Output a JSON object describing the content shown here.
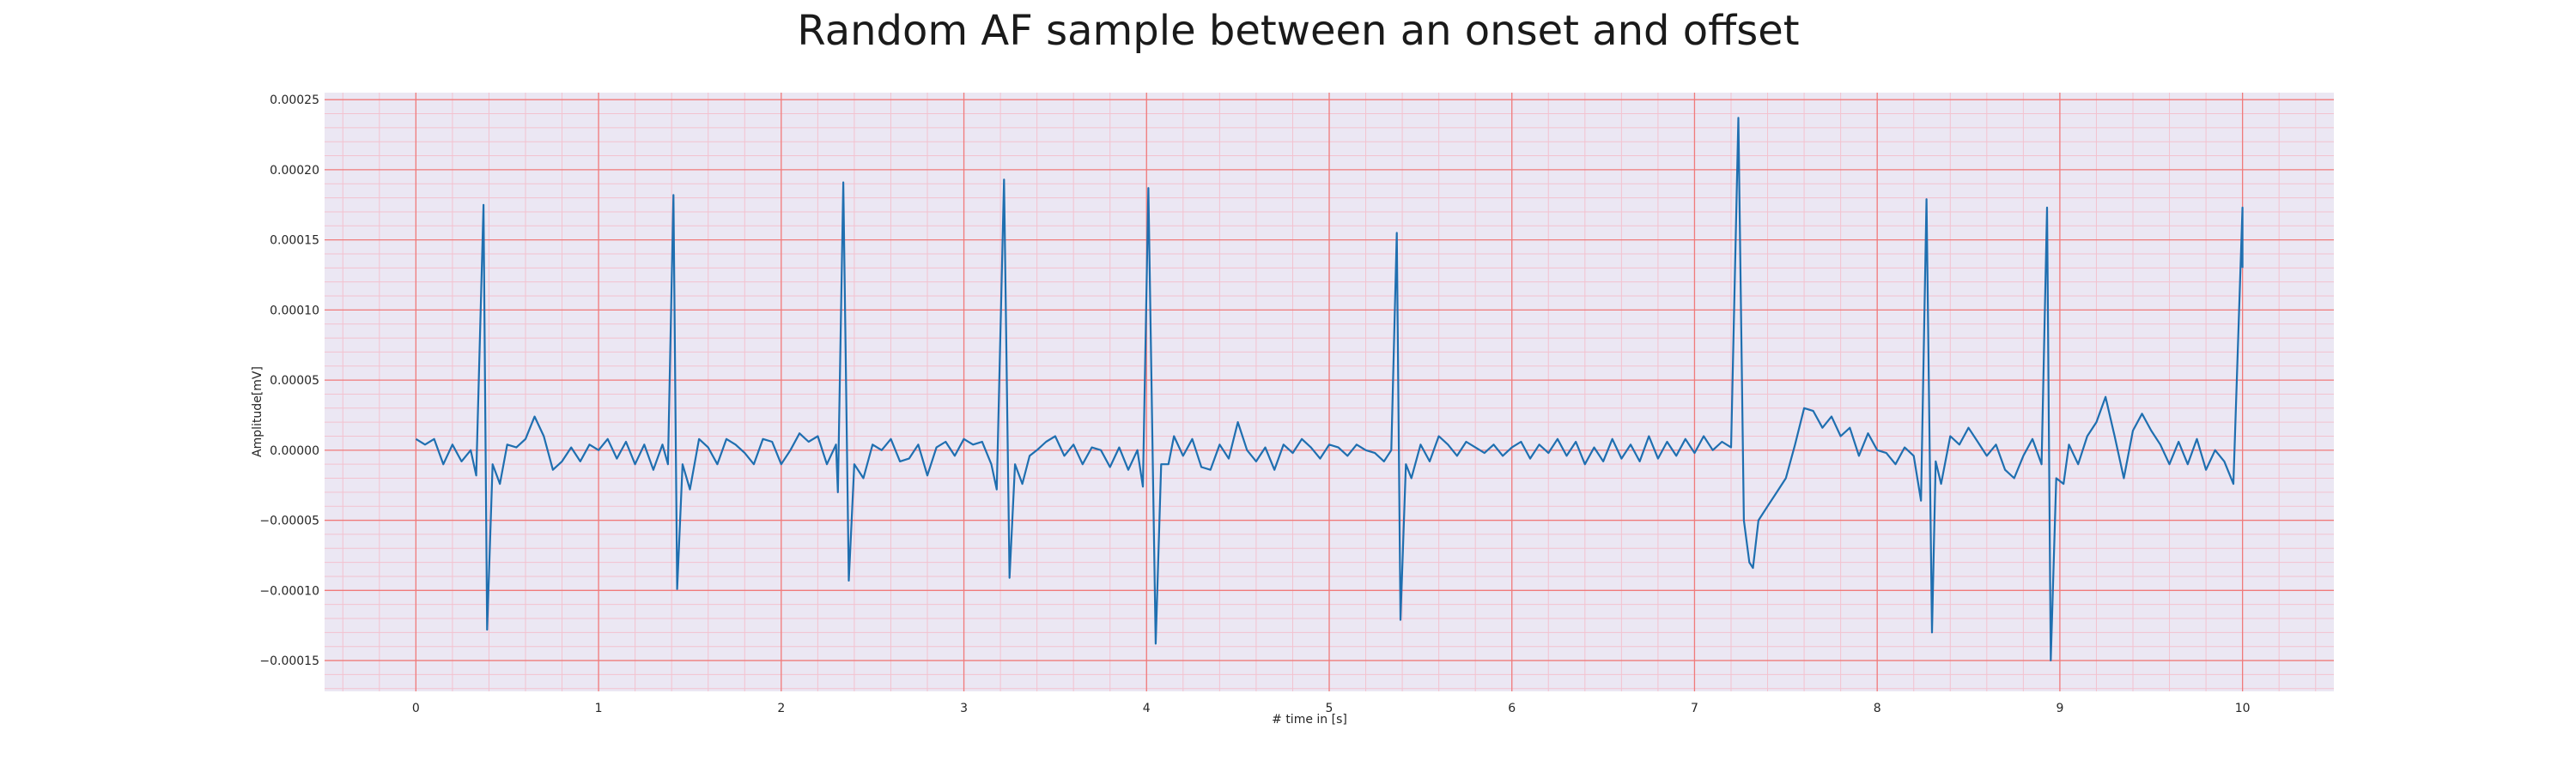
{
  "chart_data": {
    "type": "line",
    "title": "Random AF sample between an onset and offset",
    "xlabel": "# time in [s]",
    "ylabel": "Amplitude[mV]",
    "xlim": [
      -0.5,
      10.5
    ],
    "ylim": [
      -0.000172,
      0.000255
    ],
    "xticks": [
      0,
      1,
      2,
      3,
      4,
      5,
      6,
      7,
      8,
      9,
      10
    ],
    "xtick_labels": [
      "0",
      "1",
      "2",
      "3",
      "4",
      "5",
      "6",
      "7",
      "8",
      "9",
      "10"
    ],
    "yticks": [
      -0.00015,
      -0.0001,
      -5e-05,
      0,
      5e-05,
      0.0001,
      0.00015,
      0.0002,
      0.00025
    ],
    "ytick_labels": [
      "−0.00015",
      "−0.00010",
      "−0.00005",
      "0.00000",
      "0.00005",
      "0.00010",
      "0.00015",
      "0.00020",
      "0.00025"
    ],
    "grid": true,
    "minor_grid": true,
    "colors": {
      "background": "#ebe7f3",
      "major_grid": "#f07b7b",
      "minor_grid": "#f3c2cf",
      "line": "#1f6fb0"
    },
    "series": [
      {
        "points": [
          [
            0,
            8e-06
          ],
          [
            0.05,
            4e-06
          ],
          [
            0.1,
            8e-06
          ],
          [
            0.15,
            -1e-05
          ],
          [
            0.2,
            4e-06
          ],
          [
            0.25,
            -8e-06
          ],
          [
            0.3,
            0.0
          ],
          [
            0.33,
            -1.8e-05
          ],
          [
            0.37,
            0.000175
          ],
          [
            0.39,
            -0.000128
          ],
          [
            0.42,
            -1e-05
          ],
          [
            0.46,
            -2.4e-05
          ],
          [
            0.5,
            4e-06
          ],
          [
            0.55,
            2e-06
          ],
          [
            0.6,
            8e-06
          ],
          [
            0.65,
            2.4e-05
          ],
          [
            0.7,
            1e-05
          ],
          [
            0.75,
            -1.4e-05
          ],
          [
            0.8,
            -8e-06
          ],
          [
            0.85,
            2e-06
          ],
          [
            0.9,
            -8e-06
          ],
          [
            0.95,
            4e-06
          ],
          [
            1.0,
            0.0
          ],
          [
            1.05,
            8e-06
          ],
          [
            1.1,
            -6e-06
          ],
          [
            1.15,
            6e-06
          ],
          [
            1.2,
            -1e-05
          ],
          [
            1.25,
            4e-06
          ],
          [
            1.3,
            -1.4e-05
          ],
          [
            1.35,
            4e-06
          ],
          [
            1.38,
            -1e-05
          ],
          [
            1.41,
            0.000182
          ],
          [
            1.43,
            -9.9e-05
          ],
          [
            1.46,
            -1e-05
          ],
          [
            1.5,
            -2.8e-05
          ],
          [
            1.55,
            8e-06
          ],
          [
            1.6,
            2e-06
          ],
          [
            1.65,
            -1e-05
          ],
          [
            1.7,
            8e-06
          ],
          [
            1.75,
            4e-06
          ],
          [
            1.8,
            -2e-06
          ],
          [
            1.85,
            -1e-05
          ],
          [
            1.9,
            8e-06
          ],
          [
            1.95,
            6e-06
          ],
          [
            2.0,
            -1e-05
          ],
          [
            2.05,
            0.0
          ],
          [
            2.1,
            1.2e-05
          ],
          [
            2.15,
            6e-06
          ],
          [
            2.2,
            1e-05
          ],
          [
            2.25,
            -1e-05
          ],
          [
            2.3,
            4e-06
          ],
          [
            2.31,
            -3e-05
          ],
          [
            2.34,
            0.000191
          ],
          [
            2.37,
            -9.3e-05
          ],
          [
            2.4,
            -1e-05
          ],
          [
            2.45,
            -2e-05
          ],
          [
            2.5,
            4e-06
          ],
          [
            2.55,
            0.0
          ],
          [
            2.6,
            8e-06
          ],
          [
            2.65,
            -8e-06
          ],
          [
            2.7,
            -6e-06
          ],
          [
            2.75,
            4e-06
          ],
          [
            2.8,
            -1.8e-05
          ],
          [
            2.85,
            2e-06
          ],
          [
            2.9,
            6e-06
          ],
          [
            2.95,
            -4e-06
          ],
          [
            3.0,
            8e-06
          ],
          [
            3.05,
            4e-06
          ],
          [
            3.1,
            6e-06
          ],
          [
            3.15,
            -1e-05
          ],
          [
            3.18,
            -2.8e-05
          ],
          [
            3.22,
            0.000193
          ],
          [
            3.25,
            -9.1e-05
          ],
          [
            3.28,
            -1e-05
          ],
          [
            3.32,
            -2.4e-05
          ],
          [
            3.36,
            -4e-06
          ],
          [
            3.4,
            0.0
          ],
          [
            3.45,
            6e-06
          ],
          [
            3.5,
            1e-05
          ],
          [
            3.55,
            -4e-06
          ],
          [
            3.6,
            4e-06
          ],
          [
            3.65,
            -1e-05
          ],
          [
            3.7,
            2e-06
          ],
          [
            3.75,
            0.0
          ],
          [
            3.8,
            -1.2e-05
          ],
          [
            3.85,
            2e-06
          ],
          [
            3.9,
            -1.4e-05
          ],
          [
            3.95,
            0.0
          ],
          [
            3.98,
            -2.6e-05
          ],
          [
            4.01,
            0.000187
          ],
          [
            4.05,
            -0.000138
          ],
          [
            4.08,
            -1e-05
          ],
          [
            4.12,
            -1e-05
          ],
          [
            4.15,
            1e-05
          ],
          [
            4.2,
            -4e-06
          ],
          [
            4.25,
            8e-06
          ],
          [
            4.3,
            -1.2e-05
          ],
          [
            4.35,
            -1.4e-05
          ],
          [
            4.4,
            4e-06
          ],
          [
            4.45,
            -6e-06
          ],
          [
            4.5,
            2e-05
          ],
          [
            4.55,
            0.0
          ],
          [
            4.6,
            -8e-06
          ],
          [
            4.65,
            2e-06
          ],
          [
            4.7,
            -1.4e-05
          ],
          [
            4.75,
            4e-06
          ],
          [
            4.8,
            -2e-06
          ],
          [
            4.85,
            8e-06
          ],
          [
            4.9,
            2e-06
          ],
          [
            4.95,
            -6e-06
          ],
          [
            5.0,
            4e-06
          ],
          [
            5.05,
            2e-06
          ],
          [
            5.1,
            -4e-06
          ],
          [
            5.15,
            4e-06
          ],
          [
            5.2,
            0.0
          ],
          [
            5.25,
            -2e-06
          ],
          [
            5.3,
            -8e-06
          ],
          [
            5.34,
            0.0
          ],
          [
            5.37,
            0.000155
          ],
          [
            5.39,
            -0.000121
          ],
          [
            5.42,
            -1e-05
          ],
          [
            5.45,
            -2e-05
          ],
          [
            5.5,
            4e-06
          ],
          [
            5.55,
            -8e-06
          ],
          [
            5.6,
            1e-05
          ],
          [
            5.65,
            4e-06
          ],
          [
            5.7,
            -4e-06
          ],
          [
            5.75,
            6e-06
          ],
          [
            5.8,
            2e-06
          ],
          [
            5.85,
            -2e-06
          ],
          [
            5.9,
            4e-06
          ],
          [
            5.95,
            -4e-06
          ],
          [
            6.0,
            2e-06
          ],
          [
            6.05,
            6e-06
          ],
          [
            6.1,
            -6e-06
          ],
          [
            6.15,
            4e-06
          ],
          [
            6.2,
            -2e-06
          ],
          [
            6.25,
            8e-06
          ],
          [
            6.3,
            -4e-06
          ],
          [
            6.35,
            6e-06
          ],
          [
            6.4,
            -1e-05
          ],
          [
            6.45,
            2e-06
          ],
          [
            6.5,
            -8e-06
          ],
          [
            6.55,
            8e-06
          ],
          [
            6.6,
            -6e-06
          ],
          [
            6.65,
            4e-06
          ],
          [
            6.7,
            -8e-06
          ],
          [
            6.75,
            1e-05
          ],
          [
            6.8,
            -6e-06
          ],
          [
            6.85,
            6e-06
          ],
          [
            6.9,
            -4e-06
          ],
          [
            6.95,
            8e-06
          ],
          [
            7.0,
            -2e-06
          ],
          [
            7.05,
            1e-05
          ],
          [
            7.1,
            0.0
          ],
          [
            7.15,
            6e-06
          ],
          [
            7.2,
            2e-06
          ],
          [
            7.24,
            0.000237
          ],
          [
            7.27,
            -5e-05
          ],
          [
            7.3,
            -8e-05
          ],
          [
            7.32,
            -8.4e-05
          ],
          [
            7.35,
            -5e-05
          ],
          [
            7.4,
            -4e-05
          ],
          [
            7.45,
            -3e-05
          ],
          [
            7.5,
            -2e-05
          ],
          [
            7.55,
            4e-06
          ],
          [
            7.6,
            3e-05
          ],
          [
            7.65,
            2.8e-05
          ],
          [
            7.7,
            1.6e-05
          ],
          [
            7.75,
            2.4e-05
          ],
          [
            7.8,
            1e-05
          ],
          [
            7.85,
            1.6e-05
          ],
          [
            7.9,
            -4e-06
          ],
          [
            7.95,
            1.2e-05
          ],
          [
            8.0,
            0.0
          ],
          [
            8.05,
            -2e-06
          ],
          [
            8.1,
            -1e-05
          ],
          [
            8.15,
            2e-06
          ],
          [
            8.2,
            -4e-06
          ],
          [
            8.24,
            -3.6e-05
          ],
          [
            8.27,
            0.000179
          ],
          [
            8.3,
            -0.00013
          ],
          [
            8.32,
            -8e-06
          ],
          [
            8.35,
            -2.4e-05
          ],
          [
            8.4,
            1e-05
          ],
          [
            8.45,
            4e-06
          ],
          [
            8.5,
            1.6e-05
          ],
          [
            8.55,
            6e-06
          ],
          [
            8.6,
            -4e-06
          ],
          [
            8.65,
            4e-06
          ],
          [
            8.7,
            -1.4e-05
          ],
          [
            8.75,
            -2e-05
          ],
          [
            8.8,
            -4e-06
          ],
          [
            8.85,
            8e-06
          ],
          [
            8.9,
            -1e-05
          ],
          [
            8.93,
            0.000173
          ],
          [
            8.95,
            -0.00015
          ],
          [
            8.98,
            -2e-05
          ],
          [
            9.02,
            -2.4e-05
          ],
          [
            9.05,
            4e-06
          ],
          [
            9.1,
            -1e-05
          ],
          [
            9.15,
            1e-05
          ],
          [
            9.2,
            2e-05
          ],
          [
            9.25,
            3.8e-05
          ],
          [
            9.3,
            1e-05
          ],
          [
            9.35,
            -2e-05
          ],
          [
            9.4,
            1.4e-05
          ],
          [
            9.45,
            2.6e-05
          ],
          [
            9.5,
            1.4e-05
          ],
          [
            9.55,
            4e-06
          ],
          [
            9.6,
            -1e-05
          ],
          [
            9.65,
            6e-06
          ],
          [
            9.7,
            -1e-05
          ],
          [
            9.75,
            8e-06
          ],
          [
            9.8,
            -1.4e-05
          ],
          [
            9.85,
            0.0
          ],
          [
            9.9,
            -8e-06
          ],
          [
            9.95,
            -2.4e-05
          ],
          [
            10.0,
            0.000173
          ],
          [
            10.0,
            0.00013
          ]
        ]
      }
    ]
  }
}
